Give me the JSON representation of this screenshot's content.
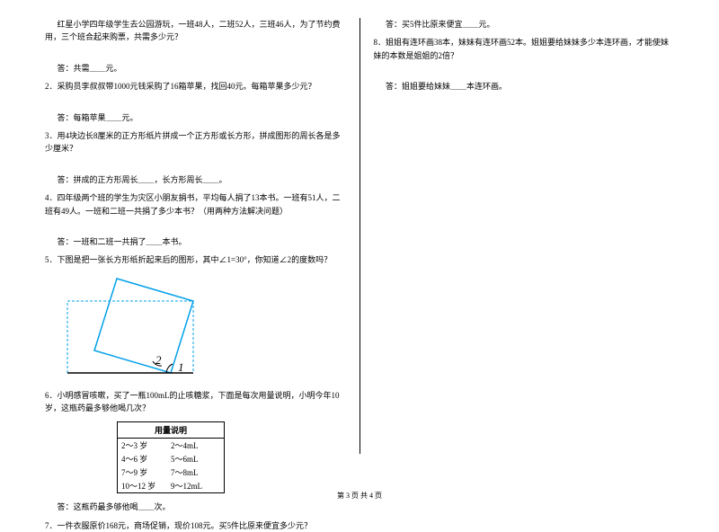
{
  "left": {
    "q1_intro": "红星小学四年级学生去公园游玩，一班48人，二班52人，三班46人，为了节约费用，三个班合起来购票，共需多少元？",
    "q1_ans": "答：共需＿＿元。",
    "q2": "2．采购员李叔叔带1000元钱采购了16箱苹果，找回40元。每箱苹果多少元？",
    "q2_ans": "答：每箱苹果＿＿元。",
    "q3": "3．用4块边长8厘米的正方形纸片拼成一个正方形或长方形，拼成图形的周长各是多少厘米？",
    "q3_ans": "答：拼成的正方形周长＿＿，长方形周长＿＿。",
    "q4": "4．四年级两个班的学生为灾区小朋友捐书，平均每人捐了13本书。一班有51人，二班有49人。一班和二班一共捐了多少本书？（用两种方法解决问题）",
    "q4_ans": "答：一班和二班一共捐了＿＿本书。",
    "q5": "5．下图是把一张长方形纸折起来后的图形，其中∠1=30°，你知道∠2的度数吗？",
    "q6": "6．小明感冒咳嗽，买了一瓶100mL的止咳糖浆，下面是每次用量说明，小明今年10岁，这瓶药最多够他喝几次？",
    "usage_title": "用量说明",
    "usage_rows": [
      {
        "age": "2～3 岁",
        "dose": "2～4mL"
      },
      {
        "age": "4～6 岁",
        "dose": "5～6mL"
      },
      {
        "age": "7～9 岁",
        "dose": "7～8mL"
      },
      {
        "age": "10～12 岁",
        "dose": "9～12mL"
      }
    ],
    "q6_ans": "答：这瓶药最多够他喝＿＿次。",
    "q7": "7．一件衣服原价168元，商场促销，现价108元。买5件比原来便宜多少元？"
  },
  "right": {
    "q7_ans": "答：买5件比原来便宜＿＿元。",
    "q8": "8．姐姐有连环画38本，妹妹有连环画52本。姐姐要给妹妹多少本连环画，才能使妹妹的本数是姐姐的2倍？",
    "q8_ans": "答：姐姐要给妹妹＿＿本连环画。"
  },
  "footer": "第 3 页 共 4 页",
  "figure": {
    "dash_color": "#00a0e9",
    "solid_color": "#00a0e9",
    "label1": "1",
    "label2": "2"
  },
  "colors": {
    "text": "#000000",
    "bg": "#ffffff",
    "figure_stroke": "#00a0e9"
  }
}
